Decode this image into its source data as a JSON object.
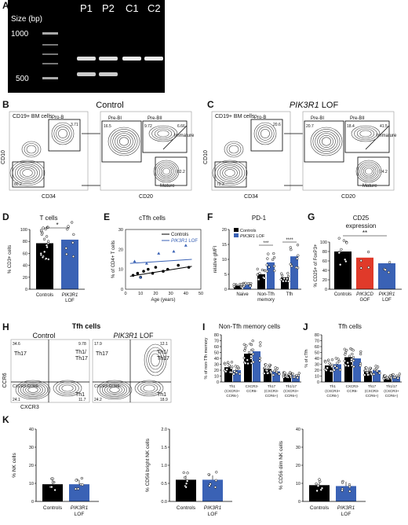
{
  "panels": {
    "A": "A",
    "B": "B",
    "C": "C",
    "D": "D",
    "E": "E",
    "F": "F",
    "G": "G",
    "H": "H",
    "I": "I",
    "J": "J",
    "K": "K"
  },
  "gel": {
    "lanes": [
      "P1",
      "P2",
      "C1",
      "C2"
    ],
    "size_label": "Size (bp)",
    "markers": [
      "1000",
      "500"
    ],
    "bands": {
      "P1": [
        0.55,
        0.75
      ],
      "P2": [
        0.55,
        0.75
      ],
      "C1": [
        0.55
      ],
      "C2": [
        0.55
      ]
    }
  },
  "flow_B": {
    "title": "Control",
    "subset": "CD19+ BM cells",
    "proB": "Pro-B",
    "preBI": "Pre-BI",
    "preBII": "Pre-BII",
    "immature": "Immature",
    "mature": "Mature",
    "xl1": "CD34",
    "yl": "CD10",
    "xl2": "CD20",
    "n1": "3.71",
    "n2": "80.2",
    "n3": "16.5",
    "n4": "9.72",
    "n5": "6.66",
    "n6": "82.2"
  },
  "flow_C": {
    "title_a": "PIK3R1",
    "title_b": " LOF",
    "subset": "CD19+ BM cells",
    "proB": "Pro-B",
    "preBI": "Pre-BI",
    "preBII": "Pre-BII",
    "immature": "Immature",
    "mature": "Mature",
    "xl1": "CD34",
    "yl": "CD10",
    "xl2": "CD20",
    "n1": "20.6",
    "n2": "79.3",
    "n3": "20.7",
    "n4": "18.4",
    "n5": "41.5",
    "n6": "74.2"
  },
  "chart_D": {
    "title": "T cells",
    "ylabel": "% CD3+ cells",
    "ticks": [
      "0",
      "20",
      "40",
      "60",
      "80",
      "100"
    ],
    "cat1": "Controls",
    "cat2a": "PIK3R1",
    "cat2b": "LOF",
    "sig": "*"
  },
  "chart_E": {
    "title": "cTfh cells",
    "ylabel": "% of CD4+ T cells",
    "xlabel": "Age (years)",
    "yticks": [
      "0",
      "10",
      "20",
      "30"
    ],
    "xticks": [
      "0",
      "10",
      "20",
      "30",
      "40",
      "50"
    ],
    "leg1": "Controls",
    "leg2a": "PIK3R1",
    "leg2b": " LOF"
  },
  "chart_F": {
    "title": "PD-1",
    "ylabel": "relative gMFI",
    "yticks": [
      "0",
      "5",
      "10",
      "15",
      "20"
    ],
    "leg1": "Controls",
    "leg2a": "PIK3R1",
    "leg2b": " LOF",
    "cat1": "Naive",
    "cat2a": "Non-Tfh",
    "cat2b": "memory",
    "cat3": "Tfh",
    "sig1": "***",
    "sig2": "****"
  },
  "chart_G": {
    "title1": "CD25",
    "title2": "expression",
    "ylabel": "% CD25+ of FoxP3+",
    "yticks": [
      "0",
      "20",
      "40",
      "60",
      "80",
      "100"
    ],
    "cat1": "Controls",
    "cat2a": "PIK3CD",
    "cat2b": "GOF",
    "cat3a": "PIK3R1",
    "cat3b": "LOF",
    "sig": "**"
  },
  "flow_H": {
    "title": "Tfh cells",
    "ctrl": "Control",
    "lof_a": "PIK3R1",
    "lof_b": " LOF",
    "yl": "CCR6",
    "xl": "CXCR3",
    "th17": "Th17",
    "th1th17a": "Th1/",
    "th1th17b": "Th17",
    "th1": "Th1",
    "cxcr3ccr6": "CXCR3-CCR6-",
    "q1": "34.6",
    "q2": "9.78",
    "q3": "17.9",
    "q4": "12.1",
    "q5": "24.1",
    "q6": "11.7",
    "q7": "24.2",
    "q8": "18.9"
  },
  "chart_I": {
    "title": "Non-Tfh memory cells",
    "ylabel": "% of non-Tfh memory",
    "yticks": [
      "0",
      "10",
      "20",
      "30",
      "40",
      "50",
      "60",
      "70",
      "80"
    ],
    "cats": [
      [
        "Th1",
        "(CXCR3+",
        "CCR6-)"
      ],
      [
        "CXCR3-",
        "CCR6-"
      ],
      [
        "Th17",
        "(CXCR3-",
        "CCR6+)"
      ],
      [
        "Th1/17",
        "(CXCR3+",
        "CCR6+)"
      ]
    ]
  },
  "chart_J": {
    "title": "Tfh cells",
    "ylabel": "% of cTfh",
    "yticks": [
      "0",
      "10",
      "20",
      "30",
      "40",
      "50",
      "60",
      "70",
      "80"
    ],
    "cats": [
      [
        "Th1",
        "(CXCR3+",
        "CCR6-)"
      ],
      [
        "CXCR3-",
        "CCR6-"
      ],
      [
        "Th17",
        "(CXCR3-",
        "CCR6+)"
      ],
      [
        "Th1/17",
        "(CXCR3+",
        "CCR6+)"
      ]
    ]
  },
  "chart_K1": {
    "ylabel": "% NK cells",
    "yticks": [
      "0",
      "10",
      "20",
      "30",
      "40"
    ],
    "cat1": "Controls",
    "cat2a": "PIK3R1",
    "cat2b": "LOF"
  },
  "chart_K2": {
    "ylabel": "% CD56 bright NK cells",
    "yticks": [
      "0.0",
      "0.5",
      "1.0",
      "1.5",
      "2.0"
    ],
    "cat1": "Controls",
    "cat2a": "PIK3R1",
    "cat2b": "LOF"
  },
  "chart_K3": {
    "ylabel": "% CD56 dim NK cells",
    "yticks": [
      "0",
      "10",
      "20",
      "30",
      "40"
    ],
    "cat1": "Controls",
    "cat2a": "PIK3R1",
    "cat2b": "LOF"
  },
  "colors": {
    "control": "#000000",
    "lof": "#3a62b5",
    "gof": "#e03a2a"
  },
  "chart_data": [
    {
      "type": "bar",
      "panel": "D",
      "categories": [
        "Controls",
        "PIK3R1 LOF"
      ],
      "values": [
        77,
        83
      ],
      "ylim": [
        0,
        100
      ]
    },
    {
      "type": "scatter",
      "panel": "E",
      "series": [
        {
          "name": "Controls",
          "x": [
            5,
            8,
            10,
            12,
            15,
            18,
            20,
            25,
            28,
            35,
            42
          ],
          "y": [
            7,
            8,
            6,
            9,
            10,
            8,
            11,
            9,
            10,
            12,
            11
          ]
        },
        {
          "name": "PIK3R1 LOF",
          "x": [
            6,
            10,
            14,
            22,
            32,
            40
          ],
          "y": [
            14,
            6,
            13,
            18,
            19,
            22
          ]
        }
      ],
      "xlim": [
        0,
        50
      ],
      "ylim": [
        0,
        30
      ]
    },
    {
      "type": "bar",
      "panel": "F",
      "categories": [
        "Naive",
        "Non-Tfh memory",
        "Tfh"
      ],
      "series": [
        {
          "name": "Controls",
          "values": [
            1.2,
            5,
            4
          ]
        },
        {
          "name": "PIK3R1 LOF",
          "values": [
            1.5,
            9,
            11
          ]
        }
      ],
      "ylim": [
        0,
        20
      ]
    },
    {
      "type": "bar",
      "panel": "G",
      "categories": [
        "Controls",
        "PIK3CD GOF",
        "PIK3R1 LOF"
      ],
      "values": [
        80,
        67,
        55
      ],
      "ylim": [
        0,
        100
      ]
    },
    {
      "type": "bar",
      "panel": "I",
      "categories": [
        "Th1",
        "CXCR3-CCR6-",
        "Th17",
        "Th1/17"
      ],
      "series": [
        {
          "name": "Controls",
          "values": [
            25,
            48,
            22,
            12
          ]
        },
        {
          "name": "PIK3R1 LOF",
          "values": [
            20,
            52,
            18,
            11
          ]
        }
      ],
      "ylim": [
        0,
        80
      ]
    },
    {
      "type": "bar",
      "panel": "J",
      "categories": [
        "Th1",
        "CXCR3-CCR6-",
        "Th17",
        "Th1/17"
      ],
      "series": [
        {
          "name": "Controls",
          "values": [
            28,
            42,
            18,
            8
          ]
        },
        {
          "name": "PIK3R1 LOF",
          "values": [
            30,
            40,
            20,
            10
          ]
        }
      ],
      "ylim": [
        0,
        80
      ]
    },
    {
      "type": "bar",
      "panel": "K1",
      "categories": [
        "Controls",
        "PIK3R1 LOF"
      ],
      "values": [
        9.5,
        9.5
      ],
      "ylim": [
        0,
        40
      ]
    },
    {
      "type": "bar",
      "panel": "K2",
      "categories": [
        "Controls",
        "PIK3R1 LOF"
      ],
      "values": [
        0.6,
        0.6
      ],
      "ylim": [
        0,
        2
      ]
    },
    {
      "type": "bar",
      "panel": "K3",
      "categories": [
        "Controls",
        "PIK3R1 LOF"
      ],
      "values": [
        9,
        8.5
      ],
      "ylim": [
        0,
        40
      ]
    }
  ]
}
